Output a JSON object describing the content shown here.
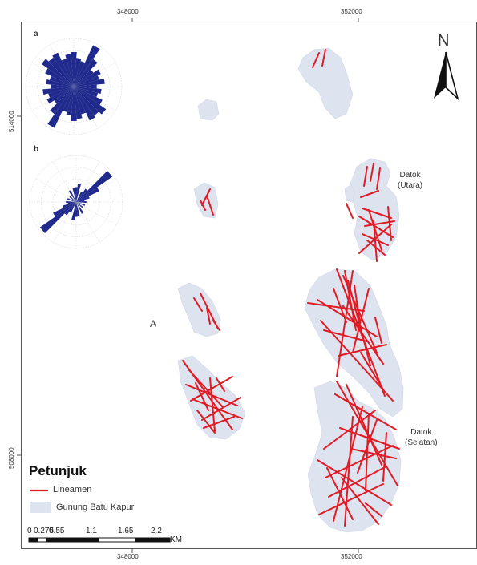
{
  "map": {
    "top_ticks": [
      "348000",
      "352000"
    ],
    "bottom_ticks": [
      "348000",
      "352000"
    ],
    "left_ticks": [
      "514000",
      "508000"
    ],
    "marker_a": "A",
    "north_label": "N",
    "rose_a_label": "a",
    "rose_b_label": "b",
    "place_north": [
      "Datok",
      "(Utara)"
    ],
    "place_south": [
      "Datok",
      "(Selatan)"
    ]
  },
  "legend": {
    "title": "Petunjuk",
    "items": [
      {
        "label": "Lineamen",
        "color": "#e01b24"
      },
      {
        "label": "Gunung Batu Kapur",
        "color": "#dde3ef"
      }
    ]
  },
  "scale_bar": {
    "labels": [
      "0",
      "0.275",
      "0.55",
      "1.1",
      "1.65",
      "2.2"
    ],
    "unit": "KM"
  },
  "colors": {
    "limestone": "#dde3ef",
    "lineament": "#e01b24",
    "rose": "#1f2a8c"
  }
}
